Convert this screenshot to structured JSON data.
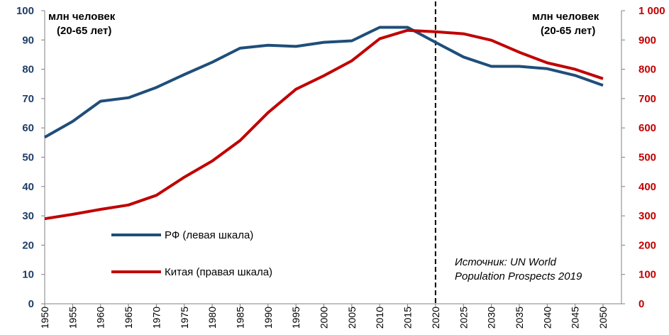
{
  "chart_data": {
    "type": "line",
    "title": "",
    "left_axis": {
      "label_lines": [
        "млн человек",
        "(20-65 лет)"
      ],
      "ylim": [
        0,
        100
      ],
      "ticks": [
        "0",
        "10",
        "20",
        "30",
        "40",
        "50",
        "60",
        "70",
        "80",
        "90",
        "100"
      ],
      "color": "#1f3d68"
    },
    "right_axis": {
      "label_lines": [
        "млн человек",
        "(20-65 лет)"
      ],
      "ylim": [
        0,
        1000
      ],
      "ticks": [
        "0",
        "100",
        "200",
        "300",
        "400",
        "500",
        "600",
        "700",
        "800",
        "900",
        "1 000"
      ],
      "color": "#c00000"
    },
    "x": [
      1950,
      1955,
      1960,
      1965,
      1970,
      1975,
      1980,
      1985,
      1990,
      1995,
      2000,
      2005,
      2010,
      2015,
      2020,
      2025,
      2030,
      2035,
      2040,
      2045,
      2050
    ],
    "x_tick_labels": [
      "1950",
      "1955",
      "1960",
      "1965",
      "1970",
      "1975",
      "1980",
      "1985",
      "1990",
      "1995",
      "2000",
      "2005",
      "2010",
      "2015",
      "2020",
      "2025",
      "2030",
      "2035",
      "2040",
      "2045",
      "2050"
    ],
    "forecast_divider_x": 2020,
    "series": [
      {
        "name": "РФ (левая шкала)",
        "axis": "left",
        "color": "#1f4e79",
        "values": [
          56.8,
          62.2,
          69.1,
          70.3,
          73.8,
          78.2,
          82.4,
          87.2,
          88.2,
          87.8,
          89.2,
          89.7,
          94.3,
          94.3,
          89.2,
          84.2,
          81.0,
          81.0,
          80.2,
          77.9,
          74.5
        ]
      },
      {
        "name": "Китая (правая шкала)",
        "axis": "right",
        "color": "#c00000",
        "values": [
          290,
          305,
          322,
          337,
          370,
          432,
          487,
          557,
          652,
          732,
          778,
          829,
          904,
          933,
          928,
          921,
          899,
          858,
          822,
          800,
          768
        ]
      }
    ],
    "legend": [
      "РФ (левая шкала)",
      "Китая (правая шкала)"
    ],
    "annotation": [
      "Источник: UN World",
      "Population Prospects 2019"
    ]
  }
}
